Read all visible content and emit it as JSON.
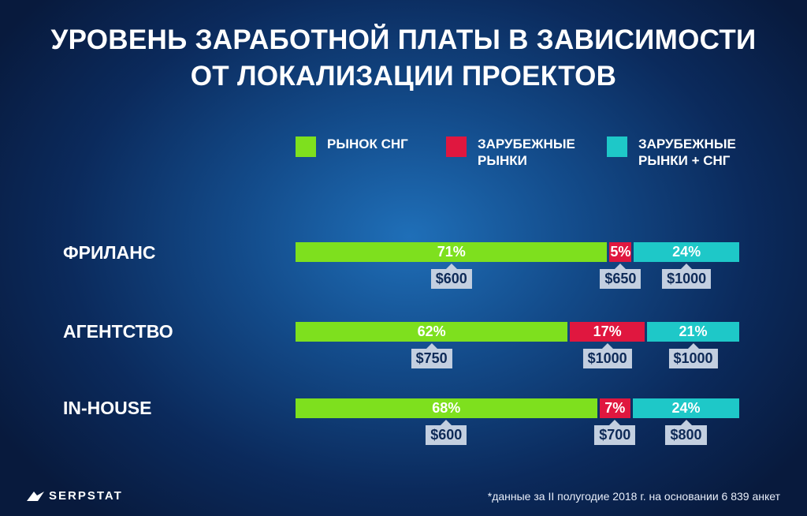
{
  "header": {
    "title_line1": "УРОВЕНЬ ЗАРАБОТНОЙ ПЛАТЫ В ЗАВИСИМОСТИ",
    "title_line2": "ОТ ЛОКАЛИЗАЦИИ ПРОЕКТОВ"
  },
  "chart_data": {
    "type": "bar",
    "stacked": true,
    "orientation": "horizontal",
    "title": "УРОВЕНЬ ЗАРАБОТНОЙ ПЛАТЫ В ЗАВИСИМОСТИ ОТ ЛОКАЛИЗАЦИИ ПРОЕКТОВ",
    "categories": [
      "ФРИЛАНС",
      "АГЕНТСТВО",
      "IN-HOUSE"
    ],
    "series": [
      {
        "name": "РЫНОК СНГ",
        "color": "#7ee01e",
        "values": [
          71,
          62,
          68
        ],
        "value_labels": [
          "71%",
          "62%",
          "68%"
        ],
        "salary_labels": [
          "$600",
          "$750",
          "$600"
        ]
      },
      {
        "name": "ЗАРУБЕЖНЫЕ РЫНКИ",
        "color": "#e0173f",
        "values": [
          5,
          17,
          7
        ],
        "value_labels": [
          "5%",
          "17%",
          "7%"
        ],
        "salary_labels": [
          "$650",
          "$1000",
          "$700"
        ]
      },
      {
        "name": "ЗАРУБЕЖНЫЕ РЫНКИ + СНГ",
        "color": "#1ec8c8",
        "values": [
          24,
          21,
          24
        ],
        "value_labels": [
          "24%",
          "21%",
          "24%"
        ],
        "salary_labels": [
          "$1000",
          "$1000",
          "$800"
        ]
      }
    ],
    "legend": {
      "placement": "top",
      "labels": [
        "РЫНОК СНГ",
        "ЗАРУБЕЖНЫЕ\nРЫНКИ",
        "ЗАРУБЕЖНЫЕ\nРЫНКИ + СНГ"
      ]
    },
    "xlim": [
      0,
      100
    ]
  },
  "footer": {
    "logo_text": "SERPSTAT",
    "note": "*данные за II полугодие 2018 г. на основании 6 839 анкет"
  },
  "colors": {
    "tag_bg": "#c3cfe0",
    "tag_text": "#0e2a57"
  }
}
